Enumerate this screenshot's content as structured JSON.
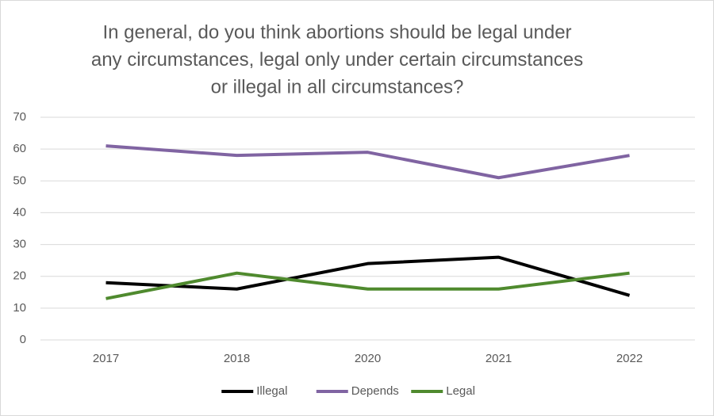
{
  "chart_data": {
    "type": "line",
    "title": [
      "In general, do you think abortions should be legal under",
      "any circumstances, legal only under certain circumstances",
      "or illegal in all circumstances?"
    ],
    "categories": [
      "2017",
      "2018",
      "2020",
      "2021",
      "2022"
    ],
    "series": [
      {
        "name": "Illegal",
        "color": "#000000",
        "values": [
          18,
          16,
          24,
          26,
          14
        ]
      },
      {
        "name": "Depends",
        "color": "#8064a2",
        "values": [
          61,
          58,
          59,
          51,
          58
        ]
      },
      {
        "name": "Legal",
        "color": "#4f8a2e",
        "values": [
          13,
          21,
          16,
          16,
          21
        ]
      }
    ],
    "ylim": [
      0,
      70
    ],
    "yticks": [
      0,
      10,
      20,
      30,
      40,
      50,
      60,
      70
    ],
    "grid": true,
    "legend": "bottom"
  }
}
